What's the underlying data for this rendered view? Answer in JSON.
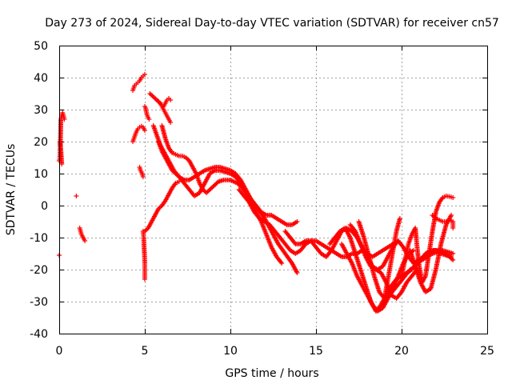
{
  "chart_data": {
    "type": "scatter",
    "title": "Day 273 of 2024, Sidereal Day-to-day VTEC variation (SDTVAR) for receiver cn57",
    "xlabel": "GPS time / hours",
    "ylabel": "SDTVAR / TECUs",
    "xlim": [
      0,
      25
    ],
    "ylim": [
      -40,
      50
    ],
    "xticks": [
      0,
      5,
      10,
      15,
      20,
      25
    ],
    "yticks": [
      -40,
      -30,
      -20,
      -10,
      0,
      10,
      20,
      30,
      40,
      50
    ],
    "xtick_labels": [
      "0",
      "5",
      "10",
      "15",
      "20",
      "25"
    ],
    "ytick_labels": [
      "-40",
      "-30",
      "-20",
      "-10",
      "0",
      "10",
      "20",
      "30",
      "40",
      "50"
    ],
    "grid": true,
    "legend": "none",
    "marker": "plus",
    "color": "#ff0000",
    "series": [
      {
        "name": "s1",
        "x": [
          0.0,
          0.05,
          0.1,
          0.15,
          0.2,
          0.25,
          0.3
        ],
        "y": [
          14,
          15,
          27,
          28,
          29,
          28,
          27
        ]
      },
      {
        "name": "s2",
        "x": [
          0.05,
          0.1,
          0.15,
          0.0
        ],
        "y": [
          20,
          17,
          13,
          -15.5
        ]
      },
      {
        "name": "s3",
        "x": [
          1.0
        ],
        "y": [
          3
        ]
      },
      {
        "name": "s4",
        "x": [
          1.2,
          1.25,
          1.3,
          1.35,
          1.4,
          1.45,
          1.5
        ],
        "y": [
          -7,
          -8,
          -9,
          -9.5,
          -10,
          -10.5,
          -11
        ]
      },
      {
        "name": "s5",
        "x": [
          4.3,
          4.4,
          4.5,
          4.6,
          4.7,
          4.8,
          4.9,
          5.0
        ],
        "y": [
          36,
          37.5,
          38,
          38.5,
          39,
          40,
          40.5,
          41
        ]
      },
      {
        "name": "s6",
        "x": [
          4.3,
          4.4,
          4.5,
          4.6,
          4.7,
          4.8,
          4.9,
          5.0
        ],
        "y": [
          20,
          21.5,
          23,
          24,
          24.5,
          24.8,
          24.5,
          23.5
        ]
      },
      {
        "name": "s7",
        "x": [
          4.7,
          4.75,
          4.8,
          4.85,
          4.9
        ],
        "y": [
          12,
          11,
          10.5,
          10,
          9
        ]
      },
      {
        "name": "s8",
        "x": [
          4.9,
          4.92,
          4.94,
          4.96,
          4.98,
          5.0,
          5.0,
          5.0,
          5.0,
          5.0
        ],
        "y": [
          -8,
          -9,
          -10,
          -13,
          -15,
          -18,
          -19.5,
          -21,
          -22,
          -23
        ]
      },
      {
        "name": "s9",
        "x": [
          5.0,
          5.05,
          5.1,
          5.15,
          5.2,
          5.25
        ],
        "y": [
          31,
          30.5,
          29,
          28,
          27.5,
          27
        ]
      },
      {
        "name": "s10",
        "x": [
          5.0,
          5.2,
          5.4,
          5.6,
          5.8,
          6.0,
          6.2,
          6.4,
          6.6,
          6.8,
          7.0
        ],
        "y": [
          -8,
          -7,
          -5,
          -3,
          -1,
          0,
          1.5,
          3.5,
          5.5,
          7,
          7.5
        ]
      },
      {
        "name": "s11",
        "x": [
          5.3,
          5.5,
          5.7,
          5.9,
          6.0,
          6.1,
          6.2,
          6.3,
          6.4,
          6.5
        ],
        "y": [
          35,
          34,
          33,
          32,
          31,
          30,
          29,
          28,
          27,
          26
        ]
      },
      {
        "name": "s12",
        "x": [
          6.0,
          6.2,
          6.4,
          6.6,
          6.8,
          7.0,
          7.2,
          7.4,
          7.6,
          7.8,
          8.0,
          8.2,
          8.4,
          8.6,
          8.8,
          9.0,
          9.3,
          9.6,
          10.0,
          10.4,
          10.8,
          11.2,
          11.6,
          12.0,
          12.4,
          12.8,
          13.2,
          13.6,
          13.9
        ],
        "y": [
          25,
          21,
          18,
          16.5,
          16,
          15.5,
          15.5,
          15,
          14,
          12,
          10,
          7,
          5,
          4,
          5,
          6,
          7.5,
          8,
          8,
          7,
          5,
          2,
          -1,
          -4,
          -8,
          -12,
          -15,
          -18,
          -21
        ]
      },
      {
        "name": "s13",
        "x": [
          5.5,
          5.7,
          5.9,
          6.1,
          6.3,
          6.5,
          6.7,
          7.0,
          7.3,
          7.6,
          7.9,
          8.2,
          8.5,
          8.8,
          9.1,
          9.4,
          9.7,
          10.0,
          10.3,
          10.6,
          10.9,
          11.2,
          11.5,
          11.8,
          12.1,
          12.4,
          12.7,
          13.0
        ],
        "y": [
          25,
          22,
          19,
          17,
          15,
          13,
          11,
          9,
          7,
          5,
          3,
          4,
          7,
          10,
          11,
          11,
          10.5,
          10,
          9,
          7,
          4,
          1,
          -2,
          -5,
          -9,
          -13,
          -16,
          -18
        ]
      },
      {
        "name": "s14",
        "x": [
          5.8,
          6.0,
          6.2,
          6.4,
          6.6,
          6.8,
          7.0,
          7.3,
          7.6,
          7.9,
          8.2,
          8.5,
          8.8,
          9.1,
          9.4,
          9.7,
          10.0,
          10.3,
          10.6,
          10.9,
          11.2,
          11.5,
          11.8,
          12.1,
          12.4,
          12.7,
          13.0,
          13.3,
          13.6,
          13.9
        ],
        "y": [
          20,
          17,
          15,
          13,
          11,
          10,
          9,
          8,
          8,
          9,
          10,
          11,
          11.5,
          12,
          12,
          11.5,
          11,
          10,
          8,
          5,
          2,
          0,
          -2,
          -3,
          -3,
          -4,
          -5,
          -6,
          -6,
          -5
        ]
      },
      {
        "name": "s15",
        "x": [
          5.7,
          5.8,
          5.9,
          6.0,
          6.1,
          6.2,
          6.3,
          6.4,
          6.5
        ],
        "y": [
          33,
          32.5,
          32,
          31.5,
          31,
          32,
          33,
          33.5,
          33
        ]
      },
      {
        "name": "s16",
        "x": [
          10.5,
          10.8,
          11.1,
          11.4,
          11.7,
          12.0,
          12.3,
          12.6,
          12.9,
          13.2,
          13.5,
          13.8,
          14.1,
          14.4,
          14.7,
          15.0,
          15.3,
          15.6,
          15.9,
          16.2,
          16.5,
          16.8,
          17.1,
          17.4,
          17.7,
          18.0,
          18.3,
          18.6,
          18.9,
          19.2,
          19.5,
          19.8,
          20.1,
          20.4,
          20.7,
          21.0,
          21.3,
          21.6,
          21.9,
          22.2,
          22.5,
          22.8,
          23.0
        ],
        "y": [
          5,
          3,
          1,
          -2,
          -4,
          -5,
          -6,
          -8,
          -10,
          -12,
          -14,
          -15,
          -14,
          -12,
          -11,
          -11,
          -12,
          -13,
          -14,
          -15,
          -16,
          -16,
          -15,
          -15,
          -14,
          -15,
          -16,
          -15,
          -14,
          -13,
          -12,
          -11,
          -13,
          -16,
          -18,
          -17,
          -16,
          -15,
          -14,
          -14,
          -15,
          -16,
          -17
        ]
      },
      {
        "name": "s17",
        "x": [
          13.2,
          13.5,
          13.8,
          14.1,
          14.4,
          14.7,
          15.0,
          15.3,
          15.6,
          15.9,
          16.2,
          16.5,
          16.8,
          17.1,
          17.4,
          17.7,
          18.0,
          18.3,
          18.6,
          18.9,
          19.2,
          19.5,
          19.8
        ],
        "y": [
          -8,
          -10,
          -12,
          -12,
          -11,
          -11,
          -13,
          -15,
          -16,
          -14,
          -11,
          -8,
          -7,
          -8,
          -10,
          -13,
          -16,
          -19,
          -20,
          -19,
          -16,
          -13,
          -11
        ]
      },
      {
        "name": "s18",
        "x": [
          15.8,
          16.1,
          16.4,
          16.7,
          17.0,
          17.3,
          17.6,
          17.9,
          18.2,
          18.5,
          18.8,
          19.1,
          19.4,
          19.7,
          20.0,
          20.3,
          20.6,
          20.9,
          21.2,
          21.5,
          21.8,
          22.1,
          22.4,
          22.7,
          23.0
        ],
        "y": [
          -12,
          -10,
          -8,
          -7,
          -10,
          -15,
          -20,
          -25,
          -30,
          -33,
          -31,
          -28,
          -25,
          -23,
          -22,
          -21,
          -20,
          -18,
          -17,
          -16,
          -15,
          -14.5,
          -14,
          -14.5,
          -15
        ]
      },
      {
        "name": "s19",
        "x": [
          16.5,
          16.8,
          17.1,
          17.4,
          17.7,
          18.0,
          18.3,
          18.6,
          18.9,
          19.2,
          19.5,
          19.8,
          20.1,
          20.4,
          20.7
        ],
        "y": [
          -12,
          -15,
          -18,
          -22,
          -25,
          -28,
          -31,
          -33,
          -32,
          -29,
          -26,
          -22,
          -18,
          -15,
          -14
        ]
      },
      {
        "name": "s20",
        "x": [
          17.0,
          17.3,
          17.6,
          17.9,
          18.2,
          18.5,
          18.8,
          19.1,
          19.4,
          19.7,
          20.0,
          20.3,
          20.6,
          20.9
        ],
        "y": [
          -6,
          -8,
          -12,
          -16,
          -19,
          -20,
          -21,
          -24,
          -28,
          -29,
          -27,
          -24,
          -22,
          -20
        ]
      },
      {
        "name": "s21",
        "x": [
          17.5,
          17.8,
          18.1,
          18.4,
          18.7,
          19.0,
          19.3,
          19.6,
          19.9,
          20.2,
          20.5,
          20.8,
          21.1,
          21.4,
          21.7,
          22.0,
          22.3,
          22.6,
          22.9
        ],
        "y": [
          -5,
          -10,
          -16,
          -22,
          -27,
          -29,
          -28,
          -26,
          -24,
          -22,
          -20,
          -19,
          -17,
          -15,
          -14,
          -14,
          -15,
          -15.5,
          -16
        ]
      },
      {
        "name": "s22",
        "x": [
          19.0,
          19.1,
          19.2,
          19.3,
          19.4,
          19.5,
          19.6,
          19.7,
          19.8,
          19.9
        ],
        "y": [
          -29,
          -26,
          -23,
          -20,
          -17,
          -14,
          -11,
          -8,
          -6,
          -4
        ]
      },
      {
        "name": "s23",
        "x": [
          20.0,
          20.2,
          20.4,
          20.6,
          20.8,
          21.0,
          21.2,
          21.4,
          21.6,
          21.8,
          22.0,
          22.2,
          22.4,
          22.6,
          22.8,
          23.0
        ],
        "y": [
          -22,
          -17,
          -12,
          -9,
          -7,
          -18,
          -24,
          -22,
          -15,
          -8,
          -2,
          1,
          2.5,
          3,
          2.8,
          2.5
        ]
      },
      {
        "name": "s24",
        "x": [
          20.5,
          20.8,
          21.1,
          21.4,
          21.7,
          22.0,
          22.3,
          22.6,
          22.9
        ],
        "y": [
          -14,
          -19,
          -24,
          -27,
          -26,
          -20,
          -12,
          -6,
          -3
        ]
      },
      {
        "name": "s25",
        "x": [
          21.8,
          22.0,
          22.2,
          22.4,
          22.6,
          22.8,
          23.0,
          23.0,
          23.0
        ],
        "y": [
          -3,
          -4,
          -4.5,
          -5,
          -5,
          -4.5,
          -5,
          -6,
          -7
        ]
      }
    ]
  }
}
